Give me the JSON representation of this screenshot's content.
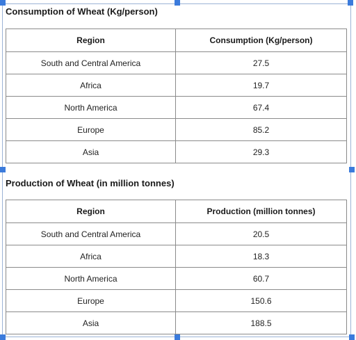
{
  "consumption": {
    "heading": "Consumption of Wheat (Kg/person)",
    "columns": [
      "Region",
      "Consumption (Kg/person)"
    ],
    "rows": [
      [
        "South and Central America",
        "27.5"
      ],
      [
        "Africa",
        "19.7"
      ],
      [
        "North America",
        "67.4"
      ],
      [
        "Europe",
        "85.2"
      ],
      [
        "Asia",
        "29.3"
      ]
    ]
  },
  "production": {
    "heading": "Production of Wheat (in million tonnes)",
    "columns": [
      "Region",
      "Production (million tonnes)"
    ],
    "rows": [
      [
        "South and Central America",
        "20.5"
      ],
      [
        "Africa",
        "18.3"
      ],
      [
        "North America",
        "60.7"
      ],
      [
        "Europe",
        "150.6"
      ],
      [
        "Asia",
        "188.5"
      ]
    ]
  },
  "colors": {
    "selection_handle": "#3b7bdc",
    "frame_border": "#9bb3d6",
    "table_border": "#8a8a8a"
  }
}
